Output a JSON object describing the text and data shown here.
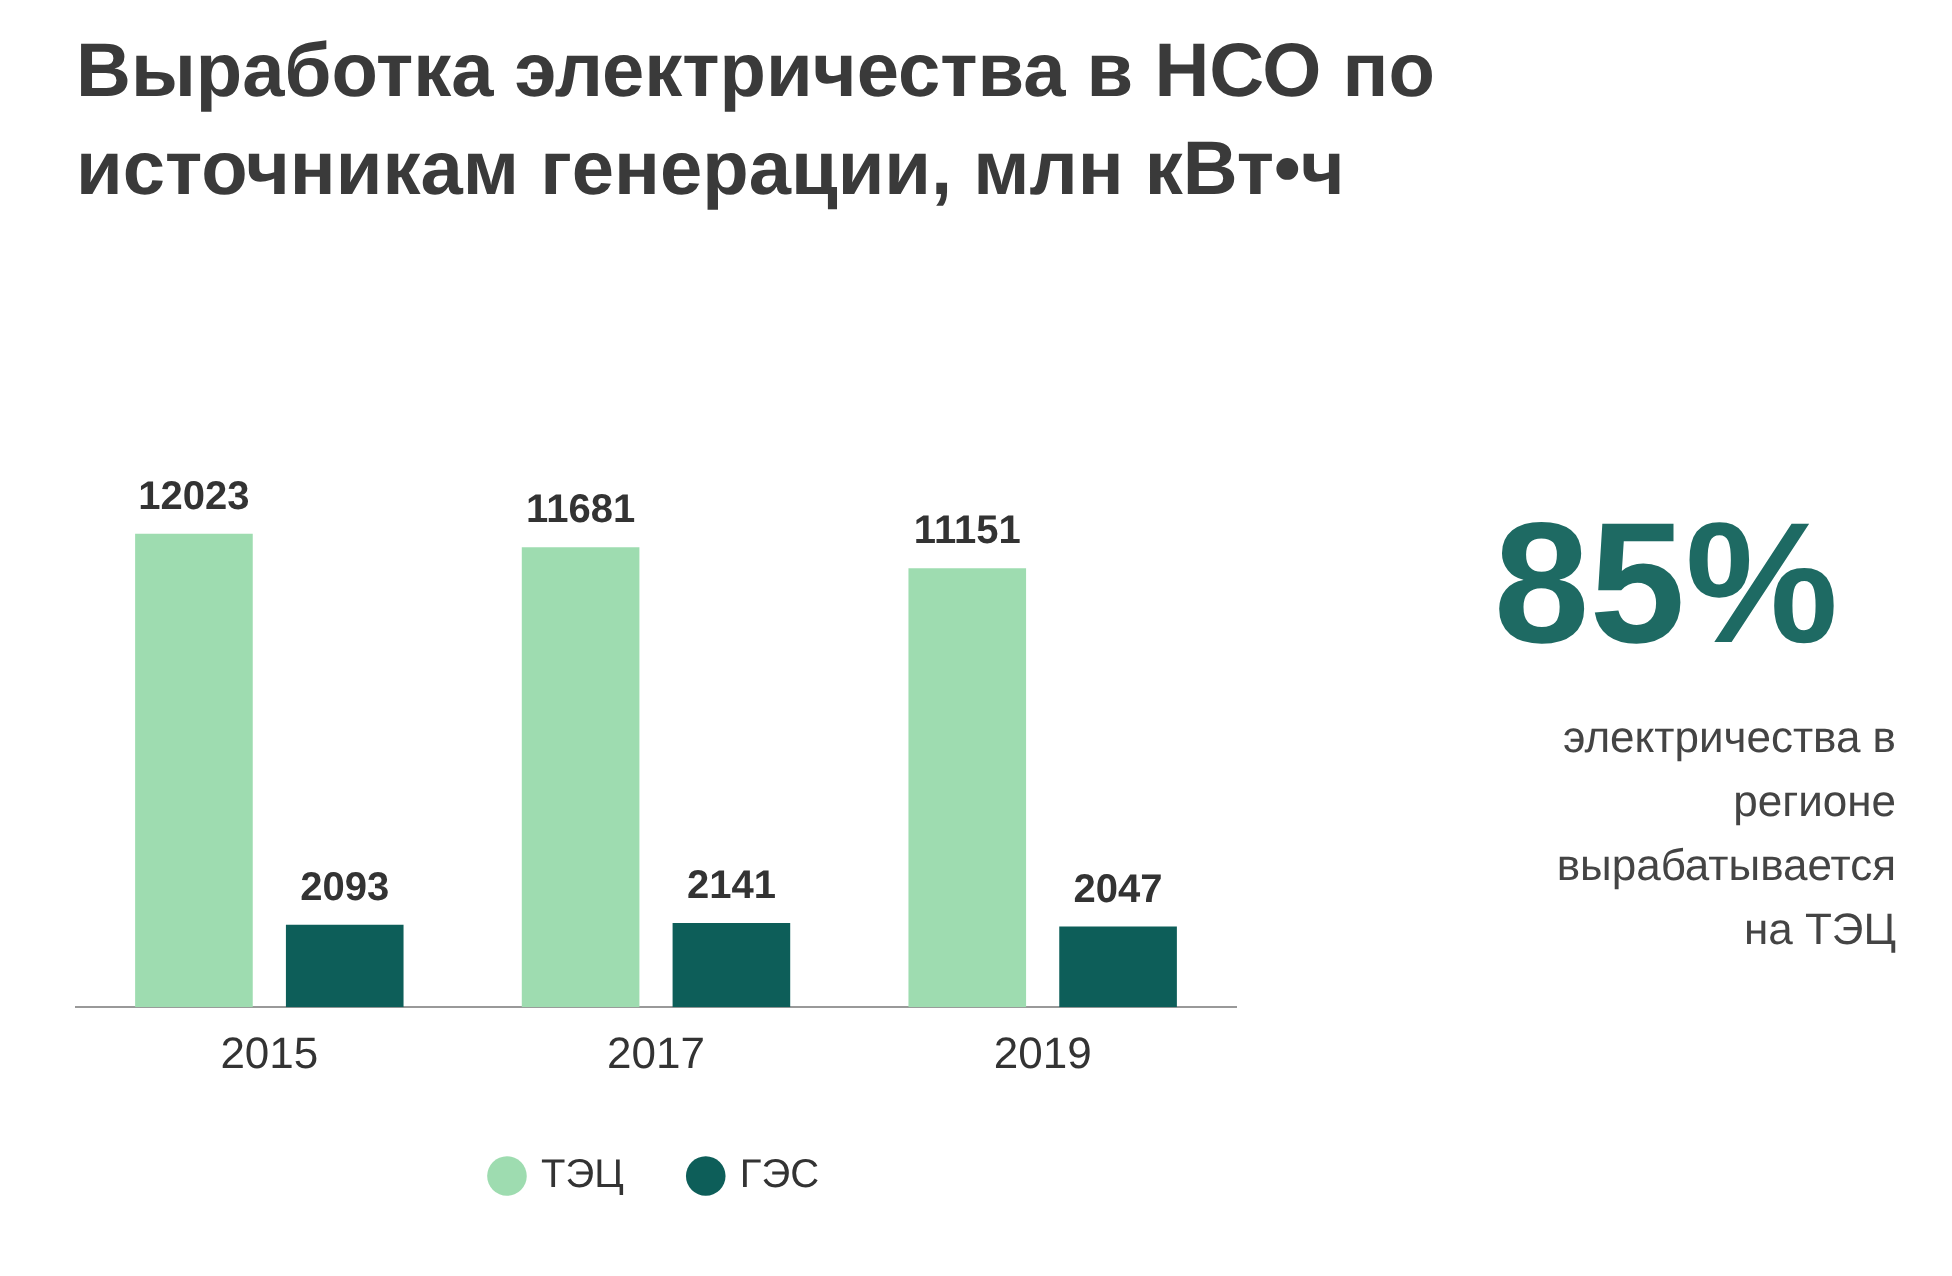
{
  "chart_data": {
    "type": "bar",
    "title": "Выработка электричества в НСО по источникам генерации, млн кВт•ч",
    "categories": [
      "2015",
      "2017",
      "2019"
    ],
    "series": [
      {
        "name": "ТЭЦ",
        "color": "#9edcb0",
        "values": [
          12023,
          11681,
          11151
        ]
      },
      {
        "name": "ГЭС",
        "color": "#0d5e59",
        "values": [
          2093,
          2141,
          2047
        ]
      }
    ],
    "data_labels": true,
    "legend": "bottom",
    "annotations": [
      "85%",
      "электричества в регионе вырабатывается на ТЭЦ"
    ]
  }
}
